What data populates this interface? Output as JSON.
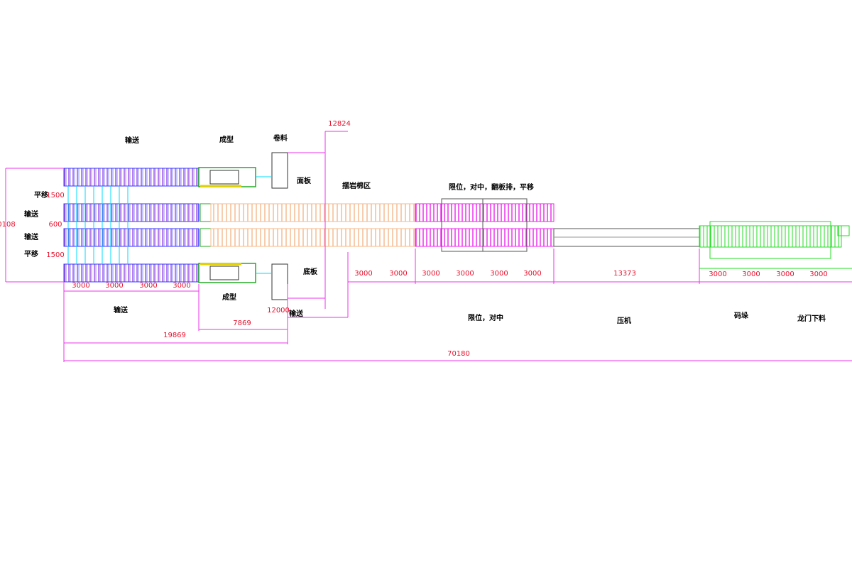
{
  "labels": [
    "输送",
    "成型",
    "卷料",
    "面板",
    "摆岩棉区",
    "限位，对中，翻板排，平移",
    "平移",
    "输送",
    "输送",
    "平移",
    "输送",
    "成型",
    "底板",
    "输送",
    "限位，对中",
    "压机",
    "码垛",
    "龙门下料"
  ],
  "dimensions": [
    "12824",
    "1500",
    "600",
    "1500",
    "0108",
    "3000",
    "3000",
    "3000",
    "3000",
    "12000",
    "7869",
    "19869",
    "70180",
    "3000",
    "3000",
    "3000",
    "3000",
    "3000",
    "3000",
    "13373",
    "3000",
    "3000",
    "3000",
    "3000"
  ]
}
